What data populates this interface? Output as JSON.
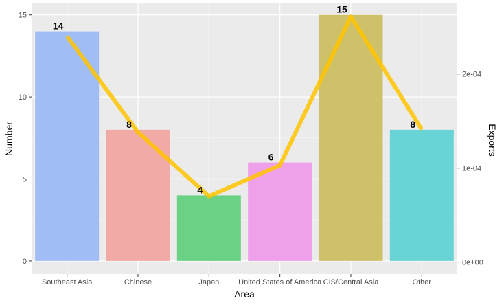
{
  "chart_data": {
    "type": "bar",
    "title": "",
    "xlabel": "Area",
    "ylabel": "Number",
    "y2label": "Exports",
    "categories": [
      "Southeast Asia",
      "Chinese",
      "Japan",
      "United States of America",
      "CIS/Central Asia",
      "Other"
    ],
    "bar_series": {
      "values": [
        14,
        8,
        4,
        6,
        15,
        8
      ],
      "colors": [
        "#a0bef5",
        "#f2aaa6",
        "#6bd185",
        "#efa0ea",
        "#cfc06a",
        "#69d4d6"
      ]
    },
    "line_series": {
      "axis": "secondary",
      "values": [
        0.00024,
        0.000138,
        7e-05,
        0.000103,
        0.000261,
        0.000141
      ],
      "color": "#ffc400"
    },
    "data_labels": [
      "14",
      "8",
      "4",
      "6",
      "15",
      "8"
    ],
    "ylim": [
      -0.8,
      15.7
    ],
    "y_ticks": [
      0,
      5,
      10,
      15
    ],
    "y_tick_labels": [
      "0",
      "5",
      "10",
      "15"
    ],
    "y2lim": [
      -1.27e-05,
      0.000275
    ],
    "y2_ticks": [
      0,
      0.0001,
      0.0002
    ],
    "y2_tick_labels": [
      "0e+00",
      "1e-04",
      "2e-04"
    ],
    "grid": true,
    "legend": "none"
  }
}
